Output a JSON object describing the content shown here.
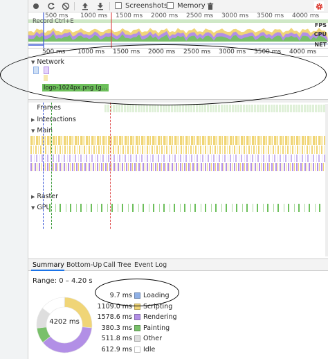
{
  "toolbar": {
    "screenshots_label": "Screenshots",
    "memory_label": "Memory",
    "screenshots_checked": false,
    "memory_checked": false
  },
  "overview": {
    "ticks": [
      "500 ms",
      "1000 ms",
      "1500 ms",
      "2000 ms",
      "2500 ms",
      "3000 ms",
      "3500 ms",
      "4000 ms"
    ],
    "record_hint": "Record  Ctrl+E",
    "side_labels": [
      "FPS",
      "CPU",
      "NET"
    ]
  },
  "ruler": {
    "ticks": [
      "500 ms",
      "1000 ms",
      "1500 ms",
      "2000 ms",
      "2500 ms",
      "3000 ms",
      "3500 ms",
      "4000 ms"
    ]
  },
  "tracks": {
    "network": "Network",
    "frames": "Frames",
    "interactions": "Interactions",
    "main": "Main",
    "raster": "Raster",
    "gpu": "GPU"
  },
  "network": {
    "request_label": "logo-1024px.png (g..."
  },
  "tabs": [
    "Summary",
    "Bottom-Up",
    "Call Tree",
    "Event Log"
  ],
  "summary": {
    "range": "Range: 0 – 4.20 s",
    "total": "4202 ms",
    "items": [
      {
        "value": "9.7 ms",
        "name": "Loading",
        "color": "#8fb0e6"
      },
      {
        "value": "1109.0 ms",
        "name": "Scripting",
        "color": "#f0d577"
      },
      {
        "value": "1578.6 ms",
        "name": "Rendering",
        "color": "#b28fe6"
      },
      {
        "value": "380.3 ms",
        "name": "Painting",
        "color": "#79c06a"
      },
      {
        "value": "511.8 ms",
        "name": "Other",
        "color": "#dedede"
      },
      {
        "value": "612.9 ms",
        "name": "Idle",
        "color": "#ffffff"
      }
    ]
  },
  "colors": {
    "scripting": "#f0d577",
    "rendering": "#b28fe6",
    "painting": "#79c06a",
    "loading": "#8fb0e6",
    "record_red": "#d93025",
    "marker_blue": "#3a57d6",
    "marker_red": "#e05050"
  }
}
